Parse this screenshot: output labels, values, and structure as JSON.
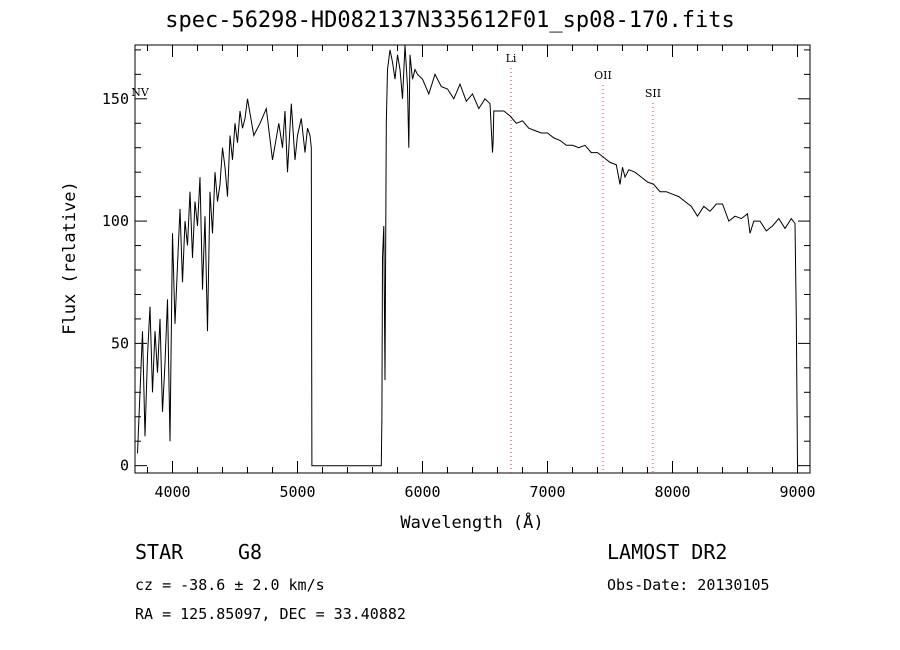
{
  "chart_data": {
    "type": "line",
    "title": "spec-56298-HD082137N335612F01_sp08-170.fits",
    "xlabel": "Wavelength (Å)",
    "ylabel": "Flux (relative)",
    "xlim": [
      3700,
      9100
    ],
    "ylim": [
      -3,
      172
    ],
    "x_ticks": [
      4000,
      5000,
      6000,
      7000,
      8000,
      9000
    ],
    "x_tick_labels": [
      "4000",
      "5000",
      "6000",
      "7000",
      "8000",
      "9000"
    ],
    "y_ticks": [
      0,
      50,
      100,
      150
    ],
    "y_tick_labels": [
      "0",
      "50",
      "100",
      "150"
    ],
    "grid": false,
    "series": [
      {
        "color": "#000000",
        "x": [
          3720,
          3740,
          3760,
          3780,
          3800,
          3820,
          3840,
          3860,
          3880,
          3900,
          3920,
          3940,
          3960,
          3980,
          4000,
          4020,
          4040,
          4060,
          4080,
          4100,
          4120,
          4140,
          4160,
          4180,
          4200,
          4220,
          4240,
          4260,
          4280,
          4300,
          4320,
          4340,
          4360,
          4380,
          4400,
          4420,
          4440,
          4460,
          4480,
          4500,
          4520,
          4540,
          4560,
          4580,
          4600,
          4650,
          4700,
          4750,
          4800,
          4850,
          4880,
          4900,
          4920,
          4950,
          4980,
          5000,
          5030,
          5060,
          5080,
          5100,
          5110,
          5115,
          5125,
          5670,
          5675,
          5680,
          5690,
          5700,
          5710,
          5720,
          5740,
          5760,
          5780,
          5800,
          5820,
          5840,
          5860,
          5880,
          5890,
          5900,
          5920,
          5940,
          5960,
          6000,
          6050,
          6100,
          6150,
          6200,
          6250,
          6300,
          6350,
          6400,
          6450,
          6500,
          6540,
          6560,
          6565,
          6570,
          6600,
          6650,
          6700,
          6750,
          6800,
          6850,
          6900,
          6950,
          7000,
          7050,
          7100,
          7150,
          7200,
          7250,
          7300,
          7350,
          7400,
          7450,
          7500,
          7550,
          7580,
          7600,
          7620,
          7650,
          7700,
          7750,
          7800,
          7850,
          7900,
          7950,
          8000,
          8050,
          8100,
          8150,
          8200,
          8250,
          8300,
          8350,
          8400,
          8450,
          8500,
          8550,
          8600,
          8620,
          8650,
          8700,
          8750,
          8800,
          8850,
          8900,
          8950,
          8980,
          8990,
          9000,
          9010
        ],
        "y": [
          5,
          30,
          55,
          12,
          45,
          65,
          30,
          55,
          38,
          60,
          22,
          42,
          68,
          10,
          95,
          58,
          82,
          105,
          75,
          100,
          90,
          112,
          85,
          108,
          98,
          118,
          72,
          102,
          55,
          112,
          95,
          120,
          108,
          115,
          130,
          122,
          110,
          135,
          125,
          140,
          132,
          145,
          138,
          142,
          150,
          135,
          140,
          146,
          125,
          140,
          130,
          145,
          120,
          148,
          125,
          135,
          142,
          128,
          138,
          135,
          130,
          0,
          0,
          0,
          20,
          85,
          98,
          35,
          140,
          162,
          170,
          165,
          158,
          168,
          162,
          150,
          172,
          155,
          130,
          168,
          158,
          162,
          160,
          158,
          152,
          160,
          155,
          154,
          150,
          156,
          149,
          152,
          146,
          150,
          148,
          128,
          132,
          145,
          145,
          145,
          143,
          140,
          141,
          138,
          137,
          136,
          136,
          134,
          133,
          131,
          131,
          130,
          131,
          128,
          128,
          126,
          124,
          123,
          115,
          122,
          118,
          121,
          120,
          118,
          116,
          115,
          112,
          112,
          111,
          110,
          108,
          106,
          102,
          106,
          104,
          107,
          107,
          100,
          102,
          101,
          103,
          95,
          100,
          100,
          96,
          98,
          101,
          97,
          101,
          99,
          60,
          0,
          0
        ]
      }
    ],
    "annotations": [
      {
        "label": "NV",
        "x": 3740
      },
      {
        "label": "Li",
        "x": 6708
      },
      {
        "label": "OII",
        "x": 7444
      },
      {
        "label": "SII",
        "x": 7844
      }
    ]
  },
  "info": {
    "obj_class": "STAR",
    "obj_subclass": "G8",
    "survey": "LAMOST DR2",
    "cz": "cz = -38.6 ± 2.0 km/s",
    "obs_date": "Obs-Date: 20130105",
    "radec": "RA = 125.85097, DEC =  33.40882"
  },
  "colors": {
    "line": "#000000",
    "marker_lines": "#e0302a",
    "background": "#ffffff"
  }
}
